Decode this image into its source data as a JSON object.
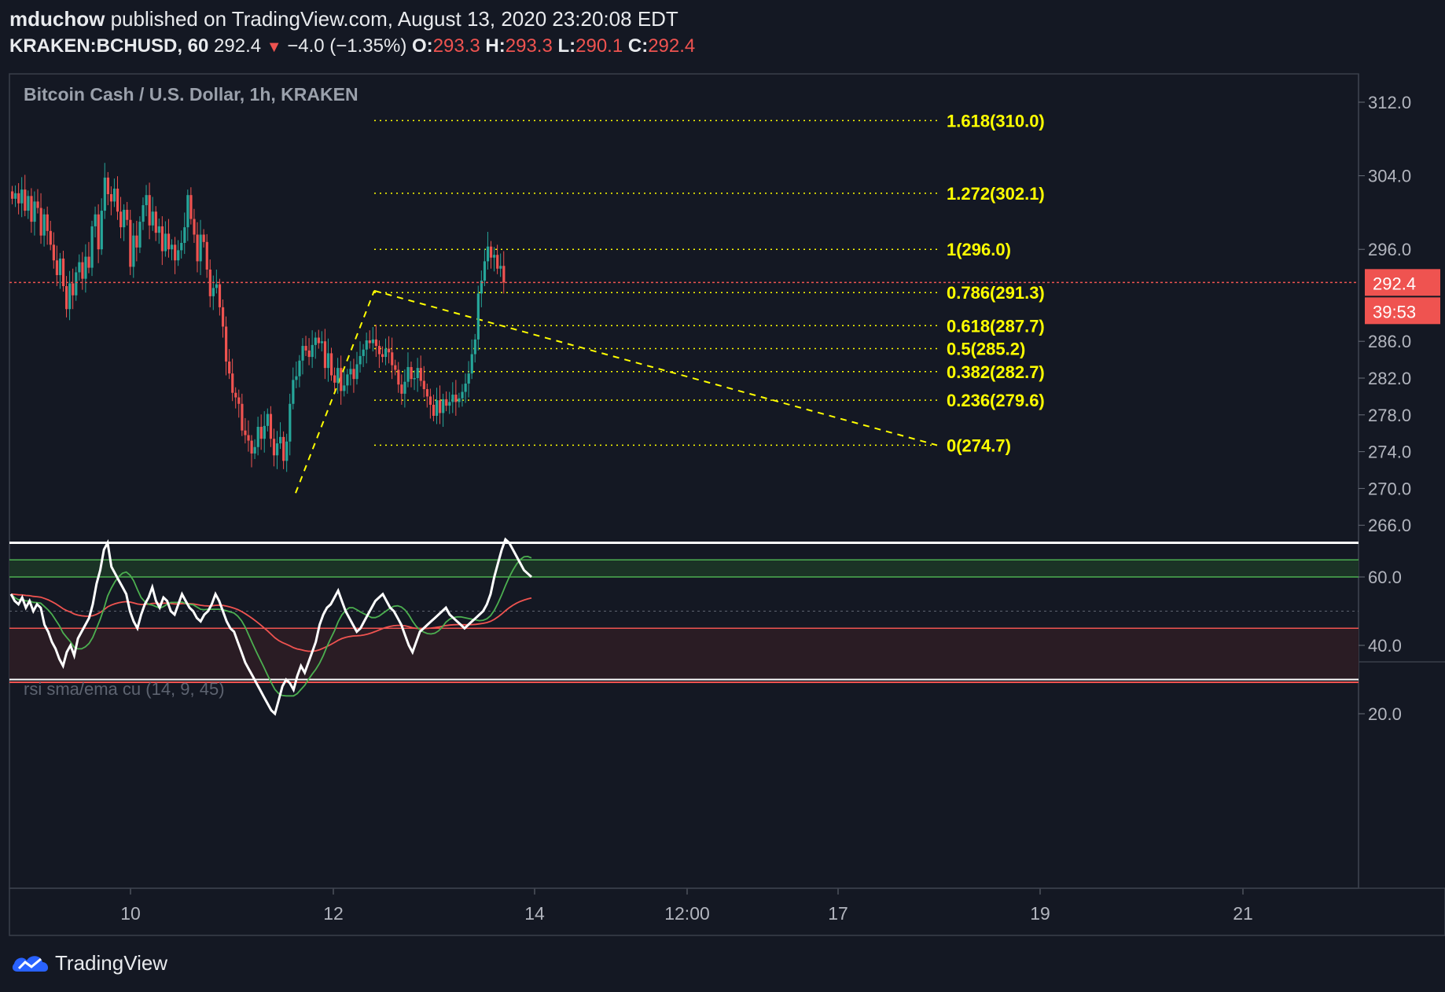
{
  "header": {
    "author": "mduchow",
    "published_text": "published on TradingView.com, August 13, 2020 23:20:08 EDT",
    "symbol": "KRAKEN:BCHUSD, 60",
    "last": "292.4",
    "change": "−4.0 (−1.35%)",
    "o_label": "O:",
    "o_value": "293.3",
    "h_label": "H:",
    "h_value": "293.3",
    "l_label": "L:",
    "l_value": "290.1",
    "c_label": "C:",
    "c_value": "292.4"
  },
  "chart": {
    "series_title": "Bitcoin Cash / U.S. Dollar, 1h, KRAKEN",
    "price_badge": "292.4",
    "countdown_badge": "39:53",
    "indicator_title": "rsi sma/ema cu (14, 9, 45)"
  },
  "footer": {
    "brand": "TradingView"
  },
  "chart_data": [
    {
      "type": "candlestick",
      "title": "Bitcoin Cash / U.S. Dollar, 1h, KRAKEN",
      "y_ticks": [
        "312.0",
        "304.0",
        "296.0",
        "286.0",
        "282.0",
        "278.0",
        "274.0",
        "270.0",
        "266.0"
      ],
      "x_ticks": [
        "10",
        "12",
        "14",
        "12:00",
        "17",
        "19",
        "21"
      ],
      "last_price": 292.4,
      "colors": {
        "up": "#26a69a",
        "down": "#ef5350",
        "fib": "#ffff00",
        "last_line": "#ef5350"
      },
      "fib_levels": [
        {
          "label": "1.618(310.0)",
          "value": 310.0
        },
        {
          "label": "1.272(302.1)",
          "value": 302.1
        },
        {
          "label": "1(296.0)",
          "value": 296.0
        },
        {
          "label": "0.786(291.3)",
          "value": 291.3
        },
        {
          "label": "0.618(287.7)",
          "value": 287.7
        },
        {
          "label": "0.5(285.2)",
          "value": 285.2
        },
        {
          "label": "0.382(282.7)",
          "value": 282.7
        },
        {
          "label": "0.236(279.6)",
          "value": 279.6
        },
        {
          "label": "0(274.7)",
          "value": 274.7
        }
      ],
      "candles_close": [
        301.5,
        302.1,
        301.0,
        302.5,
        300.2,
        301.8,
        299.0,
        301.2,
        300.5,
        297.5,
        299.8,
        298.0,
        296.5,
        294.8,
        293.2,
        295.0,
        292.0,
        289.5,
        292.3,
        291.0,
        293.5,
        294.6,
        292.8,
        295.2,
        294.0,
        298.5,
        299.8,
        296.0,
        300.2,
        303.8,
        302.0,
        301.2,
        302.6,
        300.1,
        298.4,
        300.3,
        299.2,
        294.1,
        297.5,
        296.2,
        299.0,
        300.8,
        301.9,
        298.6,
        300.1,
        297.8,
        298.5,
        295.8,
        297.7,
        296.0,
        296.5,
        294.8,
        295.9,
        296.7,
        298.4,
        301.9,
        299.3,
        297.6,
        294.7,
        297.6,
        296.8,
        293.8,
        290.9,
        291.8,
        292.2,
        289.7,
        287.6,
        283.8,
        282.5,
        280.4,
        279.9,
        279.2,
        276.3,
        275.8,
        275.2,
        273.8,
        274.5,
        276.7,
        275.4,
        276.8,
        278.1,
        275.4,
        273.6,
        274.9,
        275.6,
        273.0,
        275.1,
        279.2,
        281.8,
        282.2,
        283.9,
        285.5,
        285.0,
        284.3,
        285.6,
        286.4,
        285.8,
        286.0,
        283.1,
        284.7,
        282.3,
        281.5,
        283.1,
        280.6,
        281.2,
        282.4,
        283.0,
        281.9,
        283.5,
        284.4,
        285.1,
        286.1,
        285.8,
        286.2,
        285.5,
        284.6,
        284.3,
        285.2,
        284.8,
        283.4,
        282.9,
        281.3,
        280.3,
        281.6,
        283.2,
        281.9,
        282.0,
        283.1,
        281.7,
        280.8,
        280.0,
        279.1,
        277.9,
        279.6,
        278.2,
        279.7,
        279.0,
        279.4,
        280.2,
        279.4,
        279.8,
        280.5,
        281.4,
        282.5,
        284.6,
        286.2,
        291.2,
        292.6,
        294.7,
        296.3,
        295.1,
        295.4,
        293.9,
        294.2,
        292.4
      ],
      "ema_series": {
        "name": "ema",
        "color": "#ef5350"
      },
      "sma_series": {
        "name": "sma",
        "color": "#4caf50"
      }
    },
    {
      "type": "line",
      "title": "rsi sma/ema cu (14, 9, 45)",
      "y_ticks": [
        "60.0",
        "40.0",
        "20.0"
      ],
      "levels": [
        70,
        65,
        60,
        50,
        45,
        30,
        29.5
      ],
      "rsi": [
        55,
        53,
        52,
        54,
        51,
        53,
        50,
        52,
        51,
        46,
        44,
        41,
        39,
        36,
        34,
        38,
        40,
        37,
        42,
        44,
        46,
        48,
        52,
        58,
        62,
        68,
        70,
        63,
        61,
        59,
        57,
        55,
        50,
        47,
        45,
        49,
        52,
        54,
        57,
        53,
        51,
        54,
        53,
        50,
        49,
        52,
        55,
        53,
        51,
        50,
        48,
        47,
        49,
        50,
        52,
        55,
        53,
        50,
        47,
        45,
        44,
        41,
        38,
        35,
        33,
        31,
        29,
        27,
        25,
        23,
        21,
        20,
        24,
        28,
        30,
        29,
        27,
        31,
        34,
        32,
        35,
        38,
        41,
        46,
        49,
        51,
        52,
        54,
        56,
        53,
        50,
        48,
        46,
        44,
        45,
        47,
        49,
        51,
        53,
        54,
        55,
        53,
        51,
        50,
        48,
        46,
        43,
        40,
        38,
        41,
        44,
        45,
        46,
        47,
        48,
        49,
        50,
        51,
        49,
        48,
        47,
        46,
        45,
        46,
        47,
        48,
        49,
        50,
        52,
        55,
        60,
        64,
        68,
        71,
        70,
        68,
        66,
        64,
        62,
        61,
        60
      ]
    }
  ]
}
